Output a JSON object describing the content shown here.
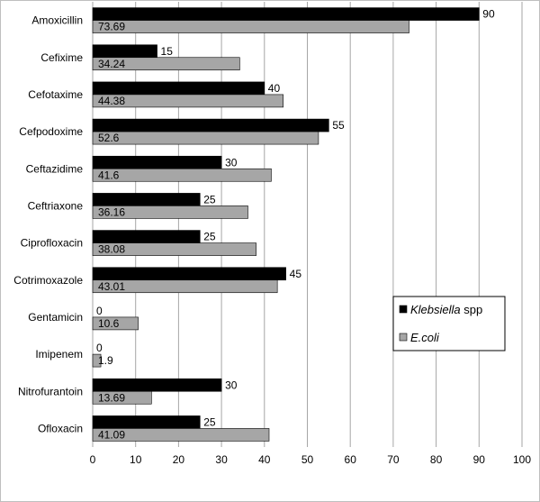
{
  "chart_data": {
    "type": "bar",
    "orientation": "horizontal",
    "categories": [
      "Amoxicillin",
      "Cefixime",
      "Cefotaxime",
      "Cefpodoxime",
      "Ceftazidime",
      "Ceftriaxone",
      "Ciprofloxacin",
      "Cotrimoxazole",
      "Gentamicin",
      "Imipenem",
      "Nitrofurantoin",
      "Ofloxacin"
    ],
    "series": [
      {
        "name": "Klebsiella spp",
        "name_italic": "Klebsiella",
        "name_plain": " spp",
        "color": "#000000",
        "values": [
          90,
          15,
          40,
          55,
          30,
          25,
          25,
          45,
          0,
          0,
          30,
          25
        ],
        "value_labels": [
          "90",
          "15",
          "40",
          "55",
          "30",
          "25",
          "25",
          "45",
          "0",
          "0",
          "30",
          "25"
        ]
      },
      {
        "name": "E.coli",
        "name_italic": "E.coli",
        "name_plain": "",
        "color": "#a6a6a6",
        "values": [
          73.69,
          34.24,
          44.38,
          52.6,
          41.6,
          36.16,
          38.08,
          43.01,
          10.6,
          1.9,
          13.69,
          41.09
        ],
        "value_labels": [
          "73.69",
          "34.24",
          "44.38",
          "52.6",
          "41.6",
          "36.16",
          "38.08",
          "43.01",
          "10.6",
          "1.9",
          "13.69",
          "41.09"
        ]
      }
    ],
    "xlim": [
      0,
      100
    ],
    "xticks": [
      "0",
      "10",
      "20",
      "30",
      "40",
      "50",
      "60",
      "70",
      "80",
      "90",
      "100"
    ],
    "grid": "vertical",
    "legend_placement": "right-middle",
    "title": "",
    "xlabel": "",
    "ylabel": ""
  }
}
